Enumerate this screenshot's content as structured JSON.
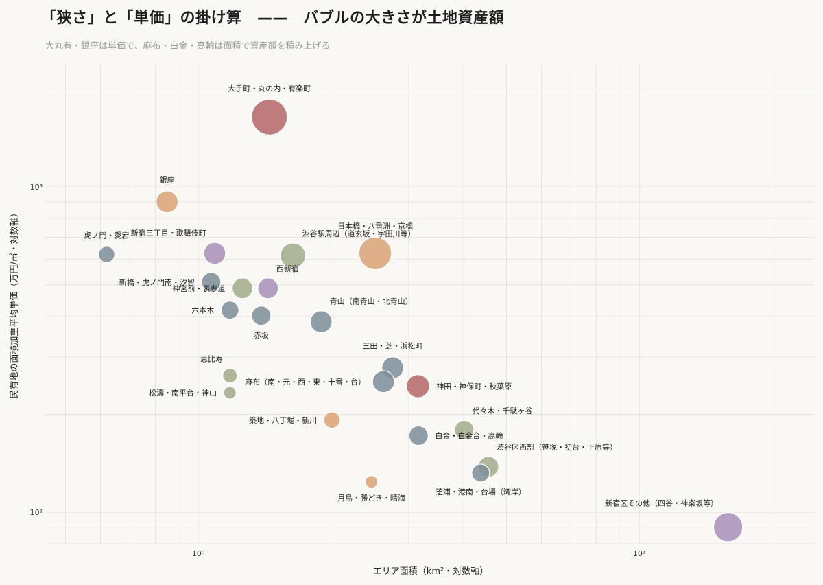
{
  "header": {
    "title": "「狭さ」と「単価」の掛け算　——　バブルの大きさが土地資産額",
    "subtitle": "大丸有・銀座は単価で、麻布・白金・高輪は面積で資産額を積み上げる"
  },
  "colors": {
    "red": "#b56a6b",
    "orange": "#d9a47a",
    "purple": "#ab92b9",
    "olive": "#a3ad8c",
    "slate": "#7f909b",
    "background": "#faf8f5",
    "grid": "#e4dfda"
  },
  "chart_data": {
    "type": "scatter",
    "title": "「狭さ」と「単価」の掛け算　——　バブルの大きさが土地資産額",
    "subtitle": "大丸有・銀座は単価で、麻布・白金・高輪は面積で資産額を積み上げる",
    "xlabel": "エリア面積（km²・対数軸）",
    "ylabel": "民有地の面積加重平均単価（万円/㎡・対数軸）",
    "xscale": "log",
    "yscale": "log",
    "xlim": [
      0.45,
      25
    ],
    "ylim": [
      80,
      2400
    ],
    "xticks": [
      1,
      10
    ],
    "xtick_labels": [
      "10⁰",
      "10¹"
    ],
    "yticks": [
      100,
      1000
    ],
    "ytick_labels": [
      "10²",
      "10³"
    ],
    "grid": true,
    "legend": "none",
    "points": [
      {
        "name": "大手町・丸の内・有楽町",
        "x": 1.45,
        "y": 1640,
        "size": 12,
        "color": "red",
        "label_pos": "above"
      },
      {
        "name": "銀座",
        "x": 0.85,
        "y": 900,
        "size": 4.5,
        "color": "orange",
        "label_pos": "above"
      },
      {
        "name": "虎ノ門・愛宕",
        "x": 0.62,
        "y": 620,
        "size": 2.5,
        "color": "slate",
        "label_pos": "above"
      },
      {
        "name": "新宿三丁目・歌舞伎町",
        "x": 1.09,
        "y": 625,
        "size": 4.5,
        "color": "purple",
        "label_pos": "above-left"
      },
      {
        "name": "渋谷駅周辺（道玄坂・宇田川等）",
        "x": 1.64,
        "y": 615,
        "size": 6,
        "color": "olive",
        "label_pos": "above-right"
      },
      {
        "name": "日本橋・八重洲・京橋",
        "x": 2.52,
        "y": 625,
        "size": 10,
        "color": "orange",
        "label_pos": "above"
      },
      {
        "name": "新橋・虎ノ門南・汐留",
        "x": 1.07,
        "y": 510,
        "size": 3.5,
        "color": "slate",
        "label_pos": "left"
      },
      {
        "name": "神宮前・表参道",
        "x": 1.26,
        "y": 488,
        "size": 4,
        "color": "olive",
        "label_pos": "left"
      },
      {
        "name": "西新宿",
        "x": 1.44,
        "y": 488,
        "size": 4,
        "color": "purple",
        "label_pos": "above-right"
      },
      {
        "name": "六本木",
        "x": 1.18,
        "y": 418,
        "size": 3,
        "color": "slate",
        "label_pos": "left"
      },
      {
        "name": "赤坂",
        "x": 1.39,
        "y": 402,
        "size": 3.5,
        "color": "slate",
        "label_pos": "below"
      },
      {
        "name": "青山（南青山・北青山）",
        "x": 1.9,
        "y": 385,
        "size": 4.5,
        "color": "slate",
        "label_pos": "above-right"
      },
      {
        "name": "三田・芝・浜松町",
        "x": 2.76,
        "y": 278,
        "size": 4.5,
        "color": "slate",
        "label_pos": "above"
      },
      {
        "name": "恵比寿",
        "x": 1.18,
        "y": 263,
        "size": 2,
        "color": "olive",
        "label_pos": "above-left"
      },
      {
        "name": "麻布（南・元・西・東・十番・台）",
        "x": 2.63,
        "y": 252,
        "size": 4.5,
        "color": "slate",
        "label_pos": "left"
      },
      {
        "name": "神田・神保町・秋葉原",
        "x": 3.15,
        "y": 244,
        "size": 5,
        "color": "red",
        "label_pos": "right"
      },
      {
        "name": "松濤・南平台・神山",
        "x": 1.18,
        "y": 233,
        "size": 1.5,
        "color": "olive",
        "label_pos": "left"
      },
      {
        "name": "築地・八丁堀・新川",
        "x": 2.01,
        "y": 192,
        "size": 2.5,
        "color": "orange",
        "label_pos": "left"
      },
      {
        "name": "代々木・千駄ヶ谷",
        "x": 4.01,
        "y": 179,
        "size": 3.5,
        "color": "olive",
        "label_pos": "above-right"
      },
      {
        "name": "白金・白金台・高輪",
        "x": 3.16,
        "y": 172,
        "size": 3.5,
        "color": "slate",
        "label_pos": "right"
      },
      {
        "name": "渋谷区西部（笹塚・初台・上原等）",
        "x": 4.55,
        "y": 138,
        "size": 4,
        "color": "olive",
        "label_pos": "above-right"
      },
      {
        "name": "芝浦・港南・台場（湾岸）",
        "x": 4.37,
        "y": 132,
        "size": 3,
        "color": "slate",
        "label_pos": "below"
      },
      {
        "name": "月島・勝どき・晴海",
        "x": 2.47,
        "y": 124,
        "size": 1.5,
        "color": "orange",
        "label_pos": "below"
      },
      {
        "name": "新宿区その他（四谷・神楽坂等）",
        "x": 15.9,
        "y": 90,
        "size": 8,
        "color": "purple",
        "label_pos": "above-left"
      }
    ]
  }
}
